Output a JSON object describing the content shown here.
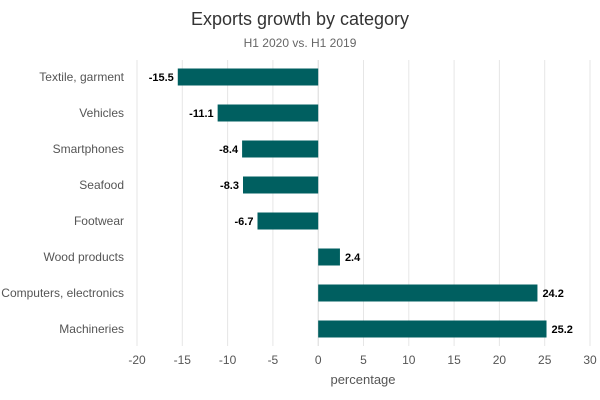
{
  "chart_data": {
    "type": "bar",
    "orientation": "horizontal",
    "title": "Exports growth by category",
    "subtitle": "H1 2020 vs. H1 2019",
    "xlabel": "percentage",
    "ylabel": "",
    "categories": [
      "Textile, garment",
      "Vehicles",
      "Smartphones",
      "Seafood",
      "Footwear",
      "Wood products",
      "Computers, electronics",
      "Machineries"
    ],
    "values": [
      -15.5,
      -11.1,
      -8.4,
      -8.3,
      -6.7,
      2.4,
      24.2,
      25.2
    ],
    "data_labels": [
      "-15.5",
      "-11.1",
      "-8.4",
      "-8.3",
      "-6.7",
      "2.4",
      "24.2",
      "25.2"
    ],
    "xlim": [
      -20,
      30
    ],
    "xticks": [
      -20,
      -15,
      -10,
      -5,
      0,
      5,
      10,
      15,
      20,
      25,
      30
    ],
    "xtick_labels": [
      "-20",
      "-15",
      "-10",
      "-5",
      "0",
      "5",
      "10",
      "15",
      "20",
      "25",
      "30"
    ],
    "grid": "vertical",
    "legend": "none",
    "colors": {
      "bar": "#005f60",
      "grid": "#e6e6e6",
      "text": "#555555",
      "title": "#333333",
      "value_label": "#000000"
    }
  }
}
